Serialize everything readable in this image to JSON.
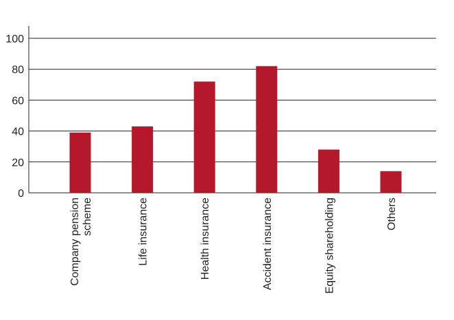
{
  "chart_data": {
    "type": "bar",
    "title": "",
    "xlabel": "",
    "ylabel": "",
    "categories": [
      [
        "Company pension",
        "scheme"
      ],
      [
        "Life insurance"
      ],
      [
        "Health insurance"
      ],
      [
        "Accident insurance"
      ],
      [
        "Equity shareholding"
      ],
      [
        "Others"
      ]
    ],
    "values": [
      39,
      43,
      72,
      82,
      28,
      14
    ],
    "ylim": [
      0,
      100
    ],
    "yticks": [
      0,
      20,
      40,
      60,
      80,
      100
    ],
    "grid": true,
    "bar_color": "#b5182b",
    "grid_color": "#222222"
  }
}
